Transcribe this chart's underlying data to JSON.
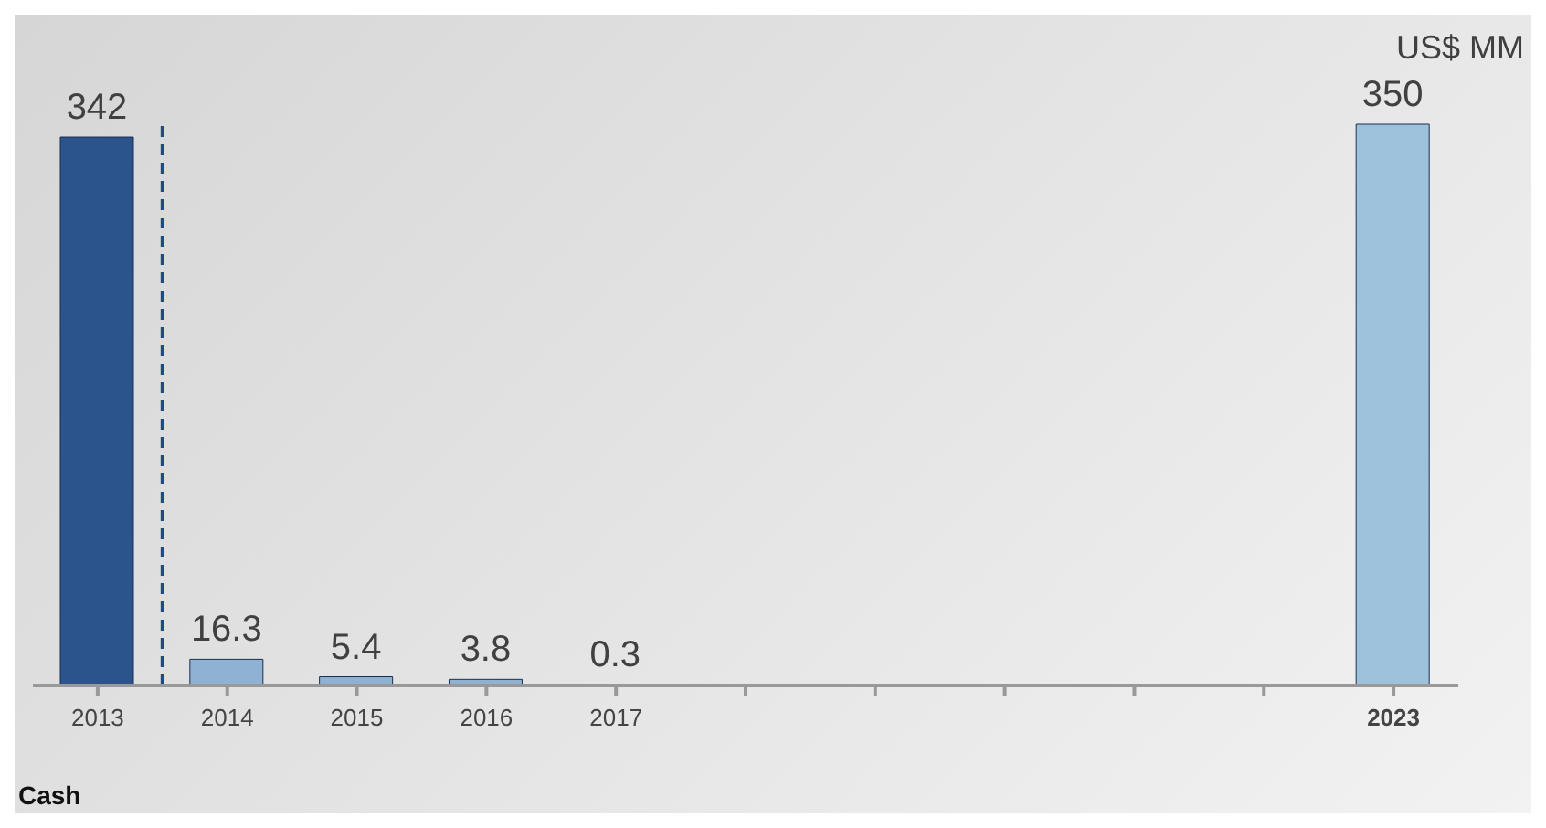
{
  "chart_data": {
    "type": "bar",
    "categories": [
      "2013",
      "2014",
      "2015",
      "2016",
      "2017",
      null,
      null,
      null,
      null,
      null,
      "2023"
    ],
    "values": [
      342,
      16.3,
      5.4,
      3.8,
      0.3,
      null,
      null,
      null,
      null,
      null,
      350
    ],
    "colors": [
      "#2b538c",
      "#8fb2d3",
      "#8fb2d3",
      "#8fb2d3",
      "#8fb2d3",
      "#8fb2d3",
      "#8fb2d3",
      "#8fb2d3",
      "#8fb2d3",
      "#8fb2d3",
      "#9ec1dc"
    ],
    "data_labels": true,
    "ylabel": "US$ MM",
    "xlabel": "Cash",
    "ref_lines": [
      {
        "axis": "x",
        "value": "2014",
        "color": "#1f4a85",
        "line_style": "dashed"
      }
    ],
    "grid": false
  }
}
